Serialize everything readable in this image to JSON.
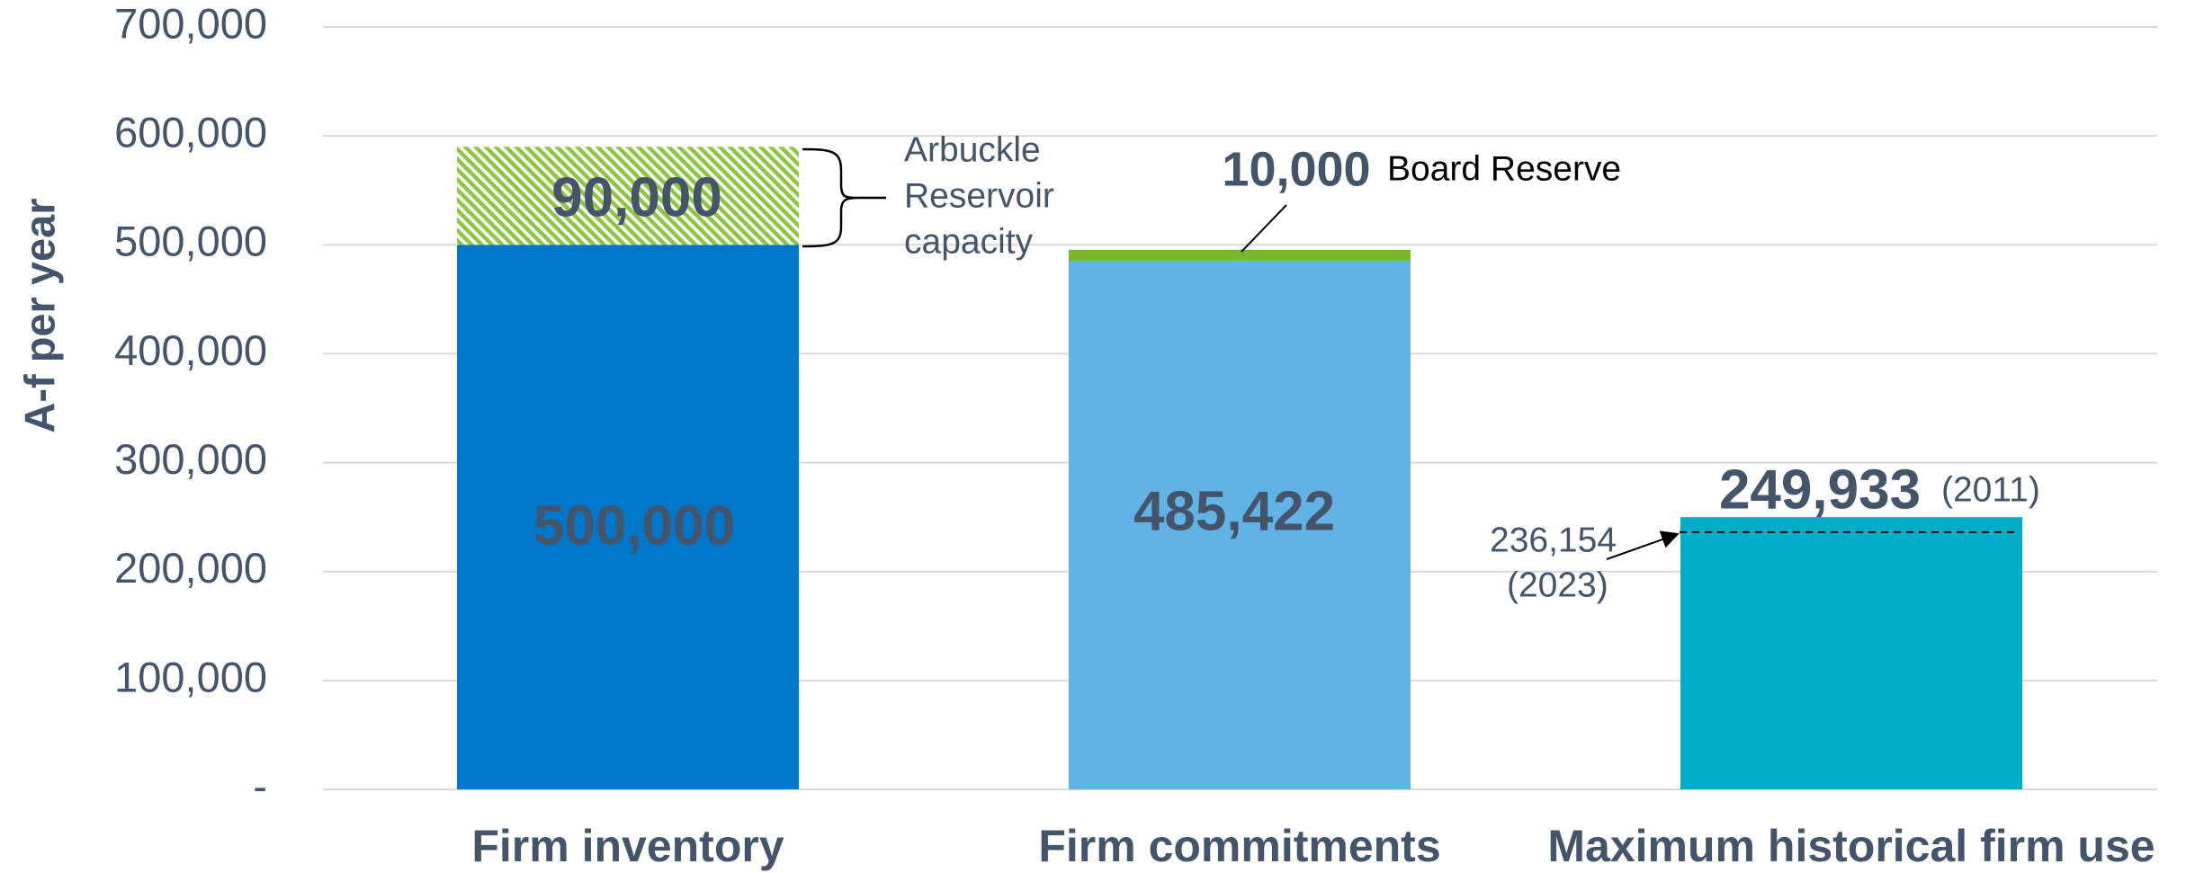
{
  "chart_data": {
    "type": "stacked_bar",
    "y_label": "A-f per year",
    "categories": [
      "Firm inventory",
      "Firm commitments",
      "Maximum historical firm use"
    ],
    "series": [
      {
        "values": [
          500000,
          485422,
          249933
        ],
        "value_labels": [
          "500,000",
          "485,422",
          "249,933"
        ],
        "colors": [
          "#0077c8",
          "#62b3e5",
          "#00acc6"
        ],
        "patterns": [
          "solid",
          "solid",
          "solid"
        ]
      },
      {
        "values": [
          90000,
          10000,
          null
        ],
        "value_labels": [
          "90,000",
          "10,000",
          null
        ],
        "colors": [
          "#8dc63f",
          "#76b82a",
          "#76b82a"
        ],
        "patterns": [
          "hatch",
          "solid",
          "solid"
        ]
      }
    ],
    "ylim": [
      0,
      700000
    ],
    "yticks": [
      {
        "value": 0,
        "label": "-"
      },
      {
        "value": 100000,
        "label": "100,000"
      },
      {
        "value": 200000,
        "label": "200,000"
      },
      {
        "value": 300000,
        "label": "300,000"
      },
      {
        "value": 400000,
        "label": "400,000"
      },
      {
        "value": 500000,
        "label": "500,000"
      },
      {
        "value": 600000,
        "label": "600,000"
      },
      {
        "value": 700000,
        "label": "700,000"
      }
    ],
    "grid": true,
    "annotations": [
      {
        "lines": [
          "Arbuckle",
          "Reservoir",
          "capacity"
        ]
      },
      {
        "text": "Board Reserve"
      },
      {
        "text": "(2011)"
      }
    ],
    "reference": {
      "value": 236154,
      "label": "236,154",
      "note": "(2023)"
    }
  }
}
